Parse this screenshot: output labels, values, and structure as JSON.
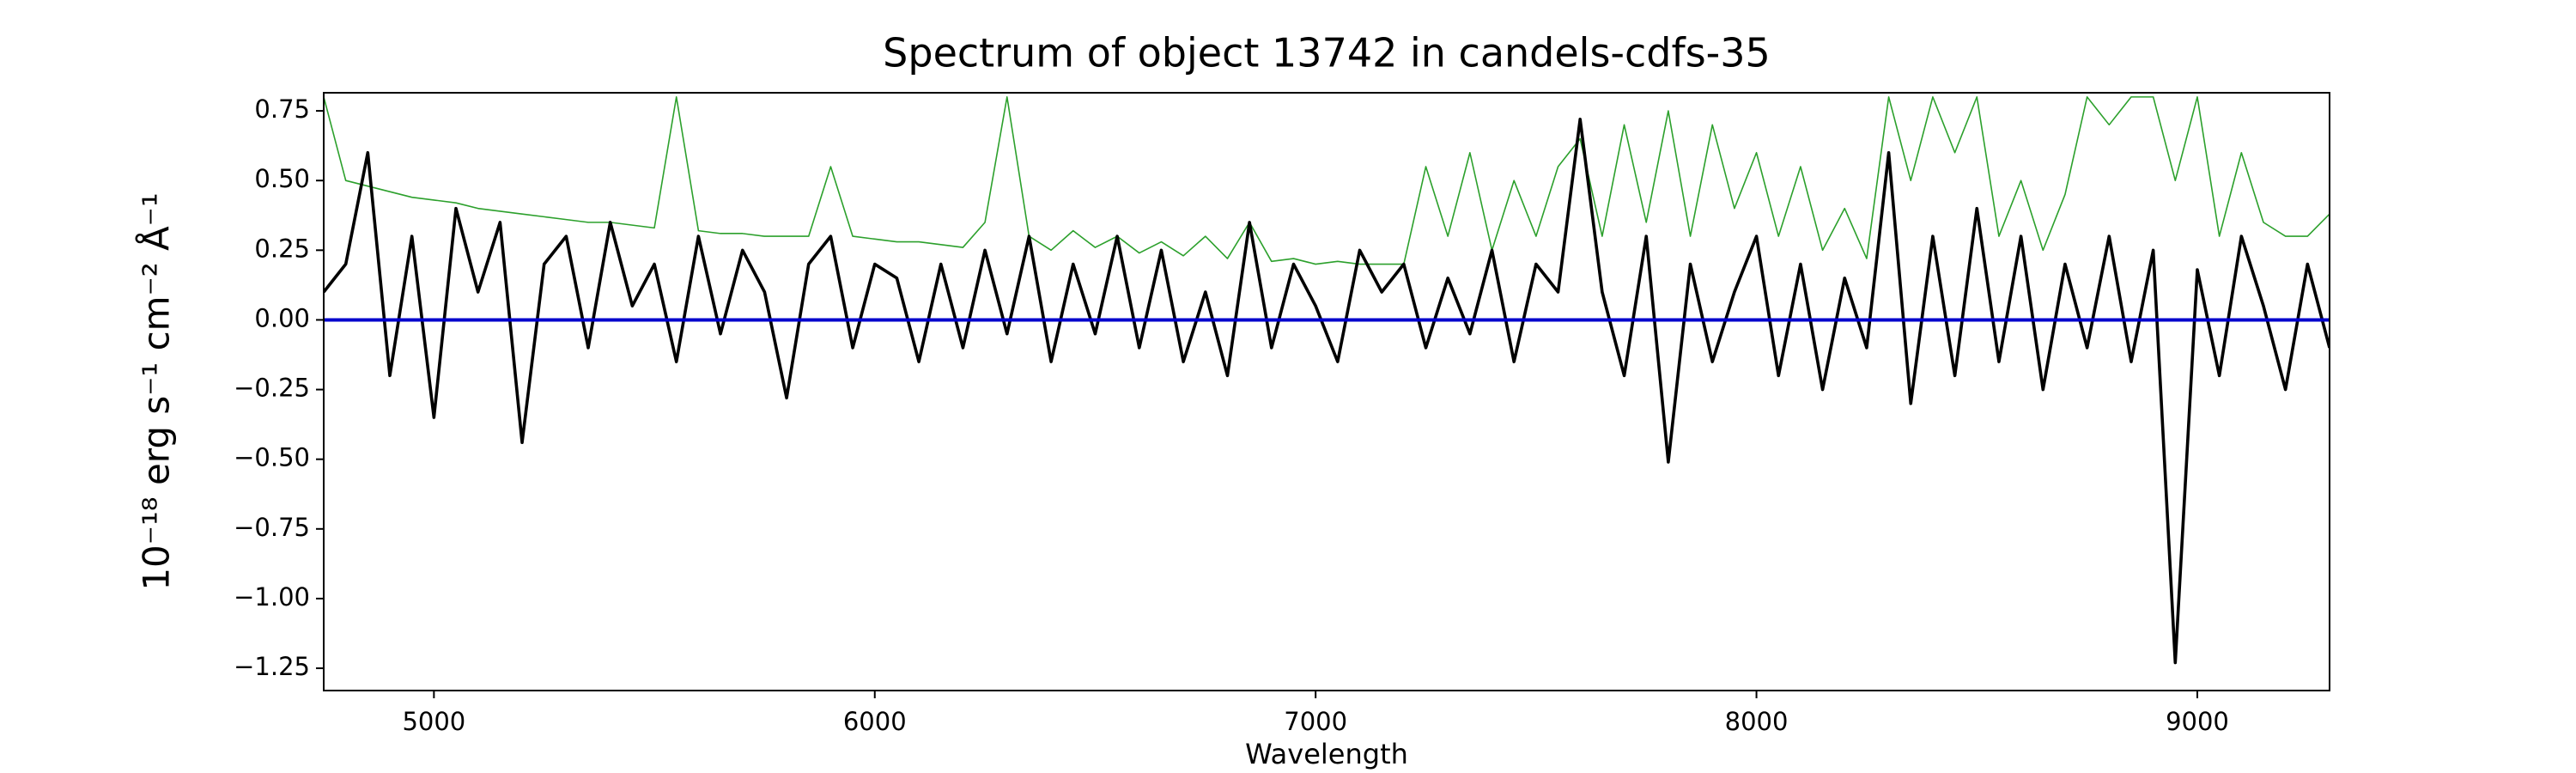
{
  "chart_data": {
    "type": "line",
    "title": "Spectrum of object 13742 in candels-cdfs-35",
    "x_label": "Wavelength",
    "y_label": "10⁻¹⁸ erg s⁻¹ cm⁻² Å⁻¹",
    "xlim": [
      4750,
      9300
    ],
    "ylim": [
      -1.33,
      0.815
    ],
    "xticks": [
      5000,
      6000,
      7000,
      8000,
      9000
    ],
    "yticks": [
      {
        "value": 0.75,
        "label": "0.75"
      },
      {
        "value": 0.5,
        "label": "0.50"
      },
      {
        "value": 0.25,
        "label": "0.25"
      },
      {
        "value": 0,
        "label": "0.00"
      },
      {
        "value": -0.25,
        "label": "−0.25"
      },
      {
        "value": -0.5,
        "label": "−0.50"
      },
      {
        "value": -0.75,
        "label": "−0.75"
      },
      {
        "value": -1,
        "label": "−1.00"
      },
      {
        "value": -1.25,
        "label": "−1.25"
      }
    ],
    "x": [
      4750,
      4800,
      4850,
      4900,
      4950,
      5000,
      5050,
      5100,
      5150,
      5200,
      5250,
      5300,
      5350,
      5400,
      5450,
      5500,
      5550,
      5600,
      5650,
      5700,
      5750,
      5800,
      5850,
      5900,
      5950,
      6000,
      6050,
      6100,
      6150,
      6200,
      6250,
      6300,
      6350,
      6400,
      6450,
      6500,
      6550,
      6600,
      6650,
      6700,
      6750,
      6800,
      6850,
      6900,
      6950,
      7000,
      7050,
      7100,
      7150,
      7200,
      7250,
      7300,
      7350,
      7400,
      7450,
      7500,
      7550,
      7600,
      7650,
      7700,
      7750,
      7800,
      7850,
      7900,
      7950,
      8000,
      8050,
      8100,
      8150,
      8200,
      8250,
      8300,
      8350,
      8400,
      8450,
      8500,
      8550,
      8600,
      8650,
      8700,
      8750,
      8800,
      8850,
      8900,
      8950,
      9000,
      9050,
      9100,
      9150,
      9200,
      9250,
      9300
    ],
    "series": [
      {
        "color": "#2ca02c",
        "width": 1.6,
        "values": [
          0.8,
          0.5,
          0.48,
          0.46,
          0.44,
          0.43,
          0.42,
          0.4,
          0.39,
          0.38,
          0.37,
          0.36,
          0.35,
          0.35,
          0.34,
          0.33,
          0.8,
          0.32,
          0.31,
          0.31,
          0.3,
          0.3,
          0.3,
          0.55,
          0.3,
          0.29,
          0.28,
          0.28,
          0.27,
          0.26,
          0.35,
          0.8,
          0.3,
          0.25,
          0.32,
          0.26,
          0.3,
          0.24,
          0.28,
          0.23,
          0.3,
          0.22,
          0.35,
          0.21,
          0.22,
          0.2,
          0.21,
          0.2,
          0.2,
          0.2,
          0.55,
          0.3,
          0.6,
          0.25,
          0.5,
          0.3,
          0.55,
          0.65,
          0.3,
          0.7,
          0.35,
          0.75,
          0.3,
          0.7,
          0.4,
          0.6,
          0.3,
          0.55,
          0.25,
          0.4,
          0.22,
          0.8,
          0.5,
          0.8,
          0.6,
          0.8,
          0.3,
          0.5,
          0.25,
          0.45,
          0.8,
          0.7,
          0.8,
          0.8,
          0.5,
          0.8,
          0.3,
          0.6,
          0.35,
          0.3,
          0.3,
          0.38
        ]
      },
      {
        "color": "#000000",
        "width": 3.6,
        "values": [
          0.1,
          0.2,
          0.6,
          -0.2,
          0.3,
          -0.35,
          0.4,
          0.1,
          0.35,
          -0.44,
          0.2,
          0.3,
          -0.1,
          0.35,
          0.05,
          0.2,
          -0.15,
          0.3,
          -0.05,
          0.25,
          0.1,
          -0.28,
          0.2,
          0.3,
          -0.1,
          0.2,
          0.15,
          -0.15,
          0.2,
          -0.1,
          0.25,
          -0.05,
          0.3,
          -0.15,
          0.2,
          -0.05,
          0.3,
          -0.1,
          0.25,
          -0.15,
          0.1,
          -0.2,
          0.35,
          -0.1,
          0.2,
          0.05,
          -0.15,
          0.25,
          0.1,
          0.2,
          -0.1,
          0.15,
          -0.05,
          0.25,
          -0.15,
          0.2,
          0.1,
          0.72,
          0.1,
          -0.2,
          0.3,
          -0.51,
          0.2,
          -0.15,
          0.1,
          0.3,
          -0.2,
          0.2,
          -0.25,
          0.15,
          -0.1,
          0.6,
          -0.3,
          0.3,
          -0.2,
          0.4,
          -0.15,
          0.3,
          -0.25,
          0.2,
          -0.1,
          0.3,
          -0.15,
          0.25,
          -1.23,
          0.18,
          -0.2,
          0.3,
          0.05,
          -0.25,
          0.2,
          -0.1
        ]
      },
      {
        "color": "#0000cc",
        "width": 4,
        "values": [
          0,
          0,
          0,
          0,
          0,
          0,
          0,
          0,
          0,
          0,
          0,
          0,
          0,
          0,
          0,
          0,
          0,
          0,
          0,
          0,
          0,
          0,
          0,
          0,
          0,
          0,
          0,
          0,
          0,
          0,
          0,
          0,
          0,
          0,
          0,
          0,
          0,
          0,
          0,
          0,
          0,
          0,
          0,
          0,
          0,
          0,
          0,
          0,
          0,
          0,
          0,
          0,
          0,
          0,
          0,
          0,
          0,
          0,
          0,
          0,
          0,
          0,
          0,
          0,
          0,
          0,
          0,
          0,
          0,
          0,
          0,
          0,
          0,
          0,
          0,
          0,
          0,
          0,
          0,
          0,
          0,
          0,
          0,
          0,
          0,
          0,
          0,
          0,
          0,
          0,
          0,
          0
        ]
      }
    ]
  }
}
